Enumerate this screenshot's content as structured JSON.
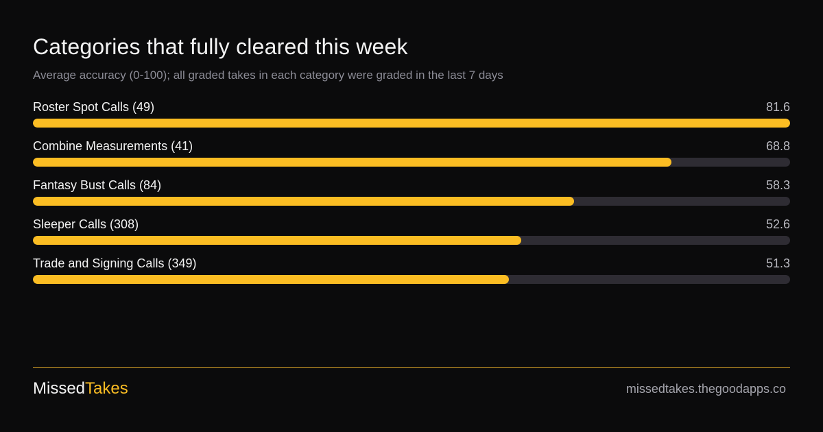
{
  "chart_data": {
    "type": "bar",
    "orientation": "horizontal",
    "title": "Categories that fully cleared this week",
    "subtitle": "Average accuracy (0-100); all graded takes in each category were graded in the last 7 days",
    "categories": [
      "Roster Spot Calls (49)",
      "Combine Measurements (41)",
      "Fantasy Bust Calls (84)",
      "Sleeper Calls (308)",
      "Trade and Signing Calls (349)"
    ],
    "values": [
      81.6,
      68.8,
      58.3,
      52.6,
      51.3
    ],
    "value_labels": [
      "81.6",
      "68.8",
      "58.3",
      "52.6",
      "51.3"
    ],
    "xlim": [
      0,
      81.6
    ],
    "grid": false,
    "legend": "none",
    "colors": {
      "bar": "#fbbd23",
      "track": "#2e2c33",
      "background": "#0b0b0c"
    }
  },
  "footer": {
    "brand_primary": "Missed",
    "brand_accent": "Takes",
    "site": "missedtakes.thegoodapps.co"
  }
}
